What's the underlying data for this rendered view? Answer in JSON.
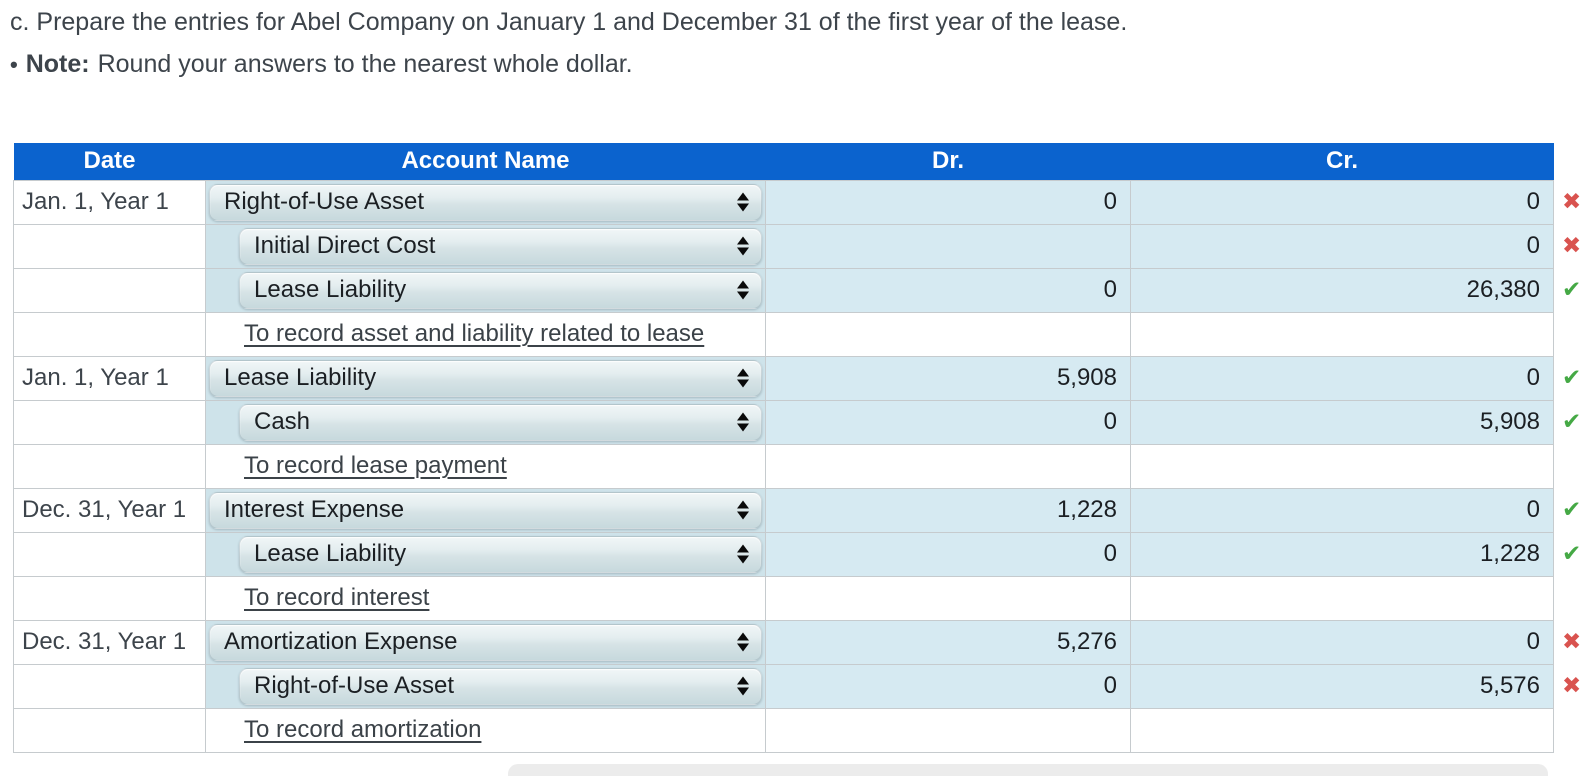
{
  "page": {
    "instruction": "c. Prepare the entries for Abel Company on January 1 and December 31 of the first year of the lease.",
    "note_bullet": "•",
    "note_label": "Note:",
    "note_text": "Round your answers to the nearest whole dollar."
  },
  "table": {
    "headers": {
      "date": "Date",
      "account": "Account Name",
      "dr": "Dr.",
      "cr": "Cr."
    },
    "status_icons": {
      "correct": "✔",
      "incorrect": "✖"
    },
    "colors": {
      "header_bg": "#0b63ce",
      "header_text": "#ffffff",
      "input_cell_blue": "#d6eaf2",
      "account_cell_blue": "#cee3ea",
      "correct_green": "#45a945",
      "incorrect_red": "#d9534f",
      "border_gray": "#c6cbce"
    },
    "rows": [
      {
        "type": "entry",
        "date": "Jan. 1, Year 1",
        "account": "Right-of-Use Asset",
        "indent": 0,
        "dr": "0",
        "cr": "0",
        "status": "incorrect"
      },
      {
        "type": "entry",
        "date": "",
        "account": "Initial Direct Cost",
        "indent": 1,
        "dr": "",
        "cr": "0",
        "status": "incorrect"
      },
      {
        "type": "entry",
        "date": "",
        "account": "Lease Liability",
        "indent": 1,
        "dr": "0",
        "cr": "26,380",
        "status": "correct"
      },
      {
        "type": "desc",
        "date": "",
        "description": "To record asset and liability related to lease"
      },
      {
        "type": "entry",
        "date": "Jan. 1, Year 1",
        "account": "Lease Liability",
        "indent": 0,
        "dr": "5,908",
        "cr": "0",
        "status": "correct"
      },
      {
        "type": "entry",
        "date": "",
        "account": "Cash",
        "indent": 1,
        "dr": "0",
        "cr": "5,908",
        "status": "correct"
      },
      {
        "type": "desc",
        "date": "",
        "description": "To record lease payment"
      },
      {
        "type": "entry",
        "date": "Dec. 31, Year 1",
        "account": "Interest Expense",
        "indent": 0,
        "dr": "1,228",
        "cr": "0",
        "status": "correct"
      },
      {
        "type": "entry",
        "date": "",
        "account": "Lease Liability",
        "indent": 1,
        "dr": "0",
        "cr": "1,228",
        "status": "correct"
      },
      {
        "type": "desc",
        "date": "",
        "description": "To record interest"
      },
      {
        "type": "entry",
        "date": "Dec. 31, Year 1",
        "account": "Amortization Expense",
        "indent": 0,
        "dr": "5,276",
        "cr": "0",
        "status": "incorrect"
      },
      {
        "type": "entry",
        "date": "",
        "account": "Right-of-Use Asset",
        "indent": 1,
        "dr": "0",
        "cr": "5,576",
        "status": "incorrect"
      },
      {
        "type": "desc",
        "date": "",
        "description": "To record amortization"
      }
    ]
  }
}
